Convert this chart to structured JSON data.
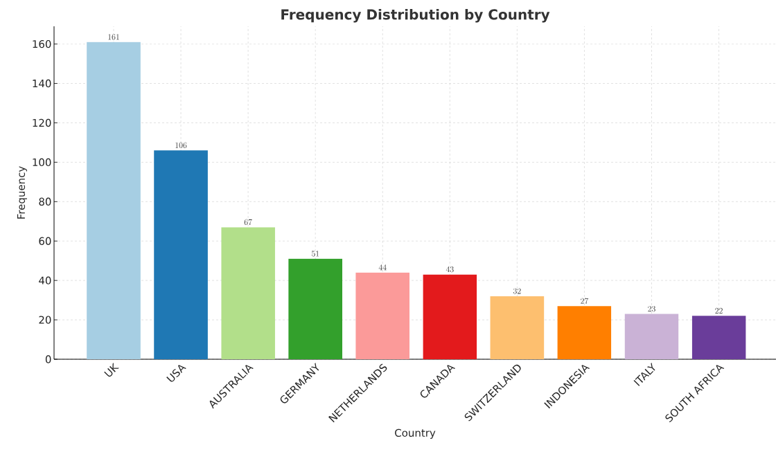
{
  "chart_data": {
    "type": "bar",
    "title": "Frequency Distribution by Country",
    "xlabel": "Country",
    "ylabel": "Frequency",
    "categories": [
      "UK",
      "USA",
      "AUSTRALIA",
      "GERMANY",
      "NETHERLANDS",
      "CANADA",
      "SWITZERLAND",
      "INDONESIA",
      "ITALY",
      "SOUTH AFRICA"
    ],
    "values": [
      161,
      106,
      67,
      51,
      44,
      43,
      32,
      27,
      23,
      22
    ],
    "colors": [
      "#a6cee3",
      "#1f78b4",
      "#b2df8a",
      "#33a02c",
      "#fb9a99",
      "#e31a1c",
      "#fdbf6f",
      "#ff7f00",
      "#cab2d6",
      "#6a3d9a"
    ],
    "ylim": [
      0,
      169
    ],
    "yticks": [
      0,
      20,
      40,
      60,
      80,
      100,
      120,
      140,
      160
    ],
    "grid": true,
    "data_labels": true
  }
}
